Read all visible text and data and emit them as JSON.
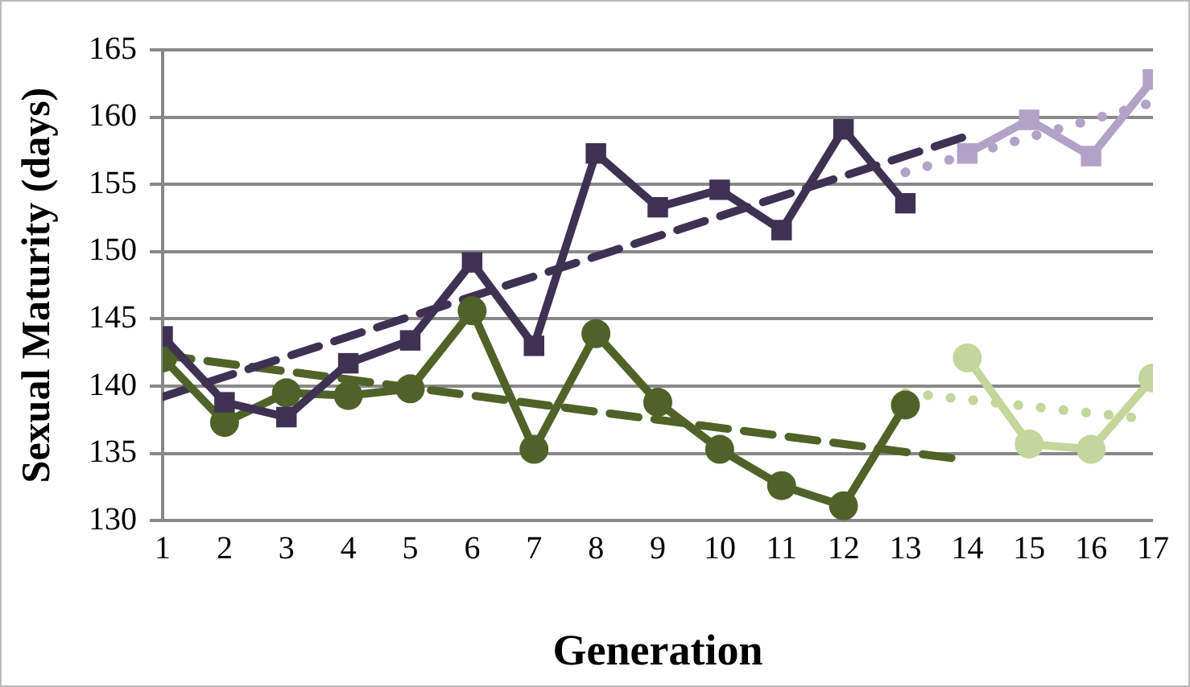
{
  "chart_data": {
    "type": "line",
    "xlabel": "Generation",
    "ylabel": "Sexual Maturity (days)",
    "xlim": [
      1,
      17
    ],
    "xticks": [
      1,
      2,
      3,
      4,
      5,
      6,
      7,
      8,
      9,
      10,
      11,
      12,
      13,
      14,
      15,
      16,
      17
    ],
    "ylim": [
      130,
      165
    ],
    "yticks": [
      130,
      135,
      140,
      145,
      150,
      155,
      160,
      165
    ],
    "grid": "y",
    "legend": false,
    "series": [
      {
        "color": "#3f3153",
        "marker": "square",
        "line_style": "solid",
        "x": [
          1,
          2,
          3,
          4,
          5,
          6,
          7,
          8,
          9,
          10,
          11,
          12,
          13
        ],
        "values": [
          143.7,
          138.8,
          137.7,
          141.7,
          143.4,
          149.2,
          143.0,
          157.3,
          153.3,
          154.6,
          151.6,
          159.1,
          153.6
        ]
      },
      {
        "color": "#b3a2c7",
        "marker": "square",
        "line_style": "solid",
        "x": [
          14,
          15,
          16,
          17
        ],
        "values": [
          157.3,
          159.8,
          157.1,
          162.8
        ]
      },
      {
        "color": "#4f6228",
        "marker": "circle",
        "line_style": "solid",
        "x": [
          1,
          2,
          3,
          4,
          5,
          6,
          7,
          8,
          9,
          10,
          11,
          12,
          13
        ],
        "values": [
          142.1,
          137.3,
          139.5,
          139.3,
          139.8,
          145.6,
          135.3,
          143.9,
          138.8,
          135.3,
          132.6,
          131.1,
          138.6
        ]
      },
      {
        "color": "#c3d69b",
        "marker": "circle",
        "line_style": "solid",
        "x": [
          14,
          15,
          16,
          17
        ],
        "values": [
          142.1,
          135.7,
          135.3,
          140.6
        ]
      },
      {
        "color": "#3f3153",
        "marker": "none",
        "line_style": "dashed",
        "x": [
          1,
          14
        ],
        "values": [
          139.2,
          158.6
        ]
      },
      {
        "color": "#4f6228",
        "marker": "none",
        "line_style": "dashed",
        "x": [
          1,
          14
        ],
        "values": [
          142.3,
          134.5
        ]
      },
      {
        "color": "#b3a2c7",
        "marker": "none",
        "line_style": "dotted",
        "x": [
          13,
          17
        ],
        "values": [
          155.9,
          161.1
        ]
      },
      {
        "color": "#c3d69b",
        "marker": "none",
        "line_style": "dotted",
        "x": [
          13,
          17
        ],
        "values": [
          139.5,
          137.5
        ]
      }
    ]
  }
}
